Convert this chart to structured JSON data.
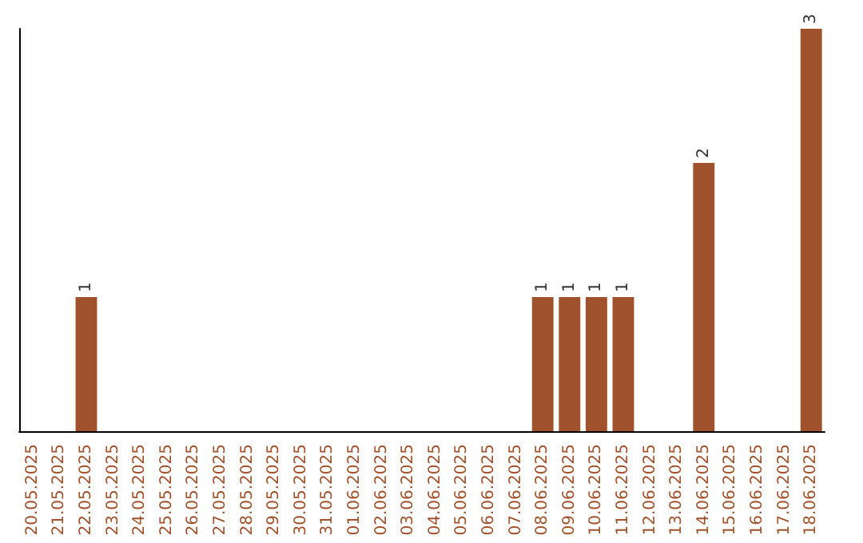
{
  "chart_data": {
    "type": "bar",
    "categories": [
      "20.05.2025",
      "21.05.2025",
      "22.05.2025",
      "23.05.2025",
      "24.05.2025",
      "25.05.2025",
      "26.05.2025",
      "27.05.2025",
      "28.05.2025",
      "29.05.2025",
      "30.05.2025",
      "31.05.2025",
      "01.06.2025",
      "02.06.2025",
      "03.06.2025",
      "04.06.2025",
      "05.06.2025",
      "06.06.2025",
      "07.06.2025",
      "08.06.2025",
      "09.06.2025",
      "10.06.2025",
      "11.06.2025",
      "12.06.2025",
      "13.06.2025",
      "14.06.2025",
      "15.06.2025",
      "16.06.2025",
      "17.06.2025",
      "18.06.2025"
    ],
    "values": [
      0,
      0,
      1,
      0,
      0,
      0,
      0,
      0,
      0,
      0,
      0,
      0,
      0,
      0,
      0,
      0,
      0,
      0,
      0,
      1,
      1,
      1,
      1,
      0,
      0,
      2,
      0,
      0,
      0,
      3
    ],
    "value_labels": [
      null,
      null,
      "1",
      null,
      null,
      null,
      null,
      null,
      null,
      null,
      null,
      null,
      null,
      null,
      null,
      null,
      null,
      null,
      null,
      "1",
      "1",
      "1",
      "1",
      null,
      null,
      "2",
      null,
      null,
      null,
      "3"
    ],
    "color": "#a0522d",
    "grid": false,
    "tick_labels": "x"
  }
}
